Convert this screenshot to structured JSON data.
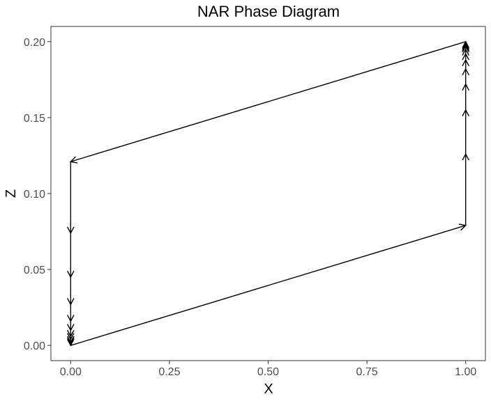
{
  "chart_data": {
    "type": "line",
    "title": "NAR Phase Diagram",
    "xlabel": "X",
    "ylabel": "Z",
    "xlim": [
      -0.05,
      1.05
    ],
    "ylim": [
      -0.01,
      0.21
    ],
    "xticks": [
      0.0,
      0.25,
      0.5,
      0.75,
      1.0
    ],
    "xtick_labels": [
      "0.00",
      "0.25",
      "0.50",
      "0.75",
      "1.00"
    ],
    "yticks": [
      0.0,
      0.05,
      0.1,
      0.15,
      0.2
    ],
    "ytick_labels": [
      "0.00",
      "0.05",
      "0.10",
      "0.15",
      "0.20"
    ],
    "grid": false,
    "series": [
      {
        "points": [
          {
            "x": 0.0,
            "y": 0.0
          },
          {
            "x": 1.0,
            "y": 0.079
          },
          {
            "x": 1.0,
            "y": 0.126
          },
          {
            "x": 1.0,
            "y": 0.155
          },
          {
            "x": 1.0,
            "y": 0.172
          },
          {
            "x": 1.0,
            "y": 0.182
          },
          {
            "x": 1.0,
            "y": 0.188
          },
          {
            "x": 1.0,
            "y": 0.192
          },
          {
            "x": 1.0,
            "y": 0.195
          },
          {
            "x": 1.0,
            "y": 0.197
          },
          {
            "x": 1.0,
            "y": 0.198
          },
          {
            "x": 1.0,
            "y": 0.199
          },
          {
            "x": 1.0,
            "y": 0.2
          },
          {
            "x": 0.0,
            "y": 0.121
          },
          {
            "x": 0.0,
            "y": 0.074
          },
          {
            "x": 0.0,
            "y": 0.045
          },
          {
            "x": 0.0,
            "y": 0.027
          },
          {
            "x": 0.0,
            "y": 0.016
          },
          {
            "x": 0.0,
            "y": 0.01
          },
          {
            "x": 0.0,
            "y": 0.006
          },
          {
            "x": 0.0,
            "y": 0.004
          },
          {
            "x": 0.0,
            "y": 0.002
          },
          {
            "x": 0.0,
            "y": 0.001
          },
          {
            "x": 0.0,
            "y": 0.0
          }
        ]
      }
    ]
  }
}
